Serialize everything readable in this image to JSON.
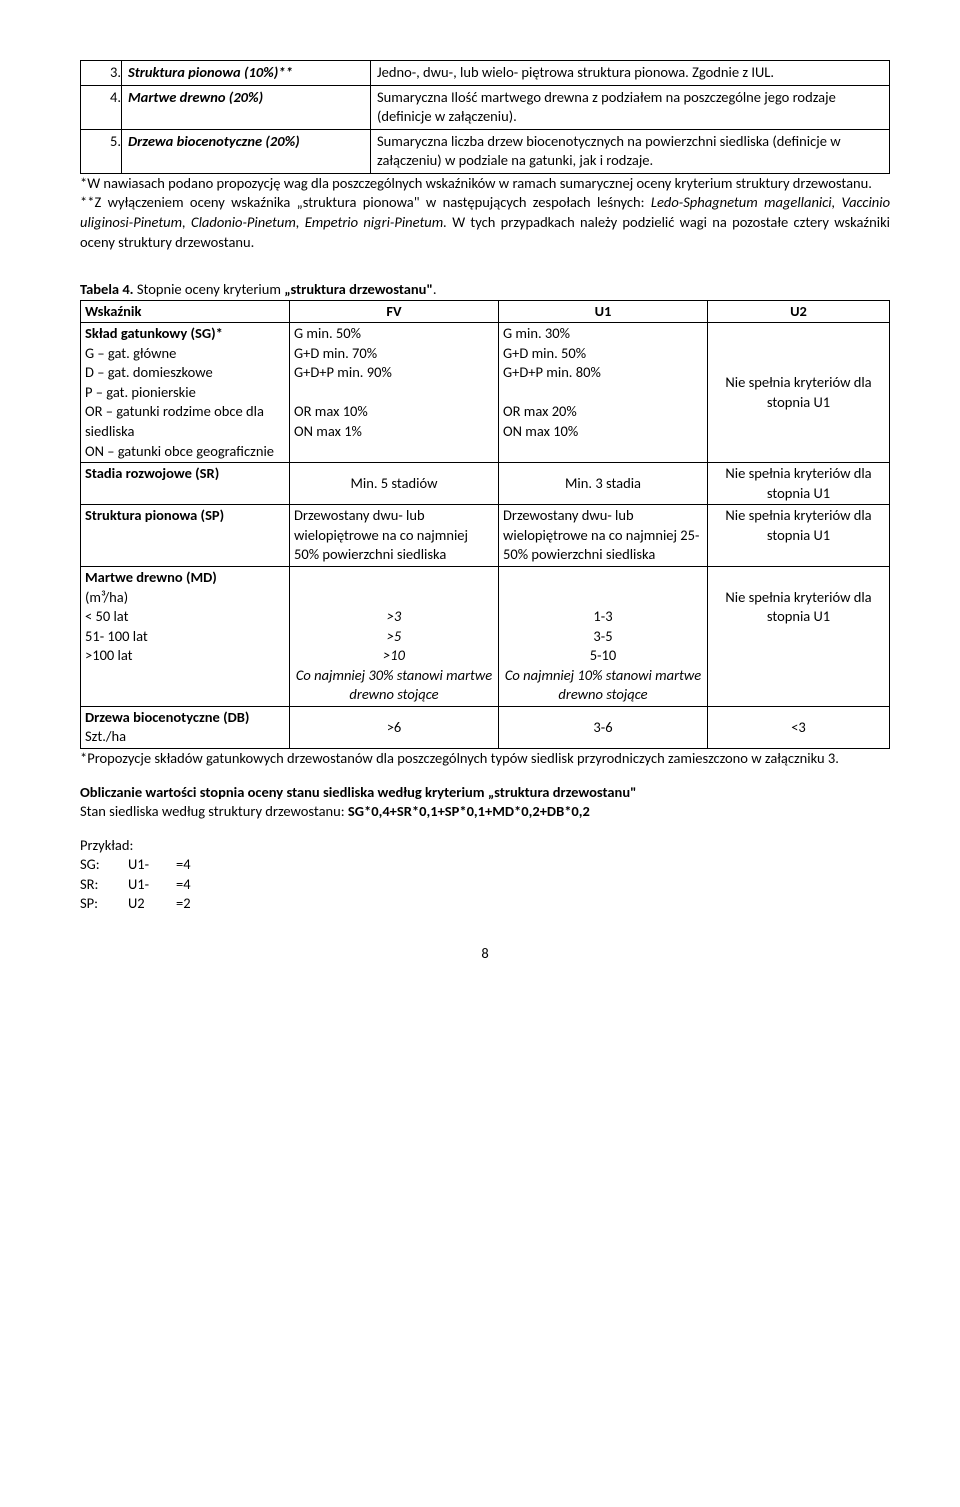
{
  "table1": {
    "rows": [
      {
        "num": "3.",
        "label": "Struktura pionowa (10%)**",
        "desc": "Jedno-, dwu-, lub wielo- piętrowa struktura pionowa. Zgodnie z IUL."
      },
      {
        "num": "4.",
        "label": "Martwe drewno (20%)",
        "desc": "Sumaryczna Ilość martwego drewna z podziałem na poszczególne jego rodzaje (definicje w załączeniu)."
      },
      {
        "num": "5.",
        "label": "Drzewa biocenotyczne (20%)",
        "desc": "Sumaryczna liczba drzew biocenotycznych na powierzchni siedliska (definicje w załączeniu) w podziale na gatunki, jak i rodzaje."
      }
    ]
  },
  "notes": {
    "n1": "*W nawiasach podano propozycję wag dla poszczególnych wskaźników w ramach sumarycznej oceny kryterium struktury drzewostanu.",
    "n2a": "**Z wyłączeniem oceny wskaźnika „struktura pionowa\" w następujących zespołach leśnych: ",
    "n2b": "Ledo-Sphagnetum magellanici, Vaccinio uliginosi-Pinetum, Cladonio-Pinetum, Empetrio nigri-Pinetum.",
    "n2c": " W tych przypadkach należy podzielić wagi na pozostałe cztery wskaźniki oceny struktury drzewostanu."
  },
  "table2_caption_a": "Tabela 4.",
  "table2_caption_b": " Stopnie oceny kryterium ",
  "table2_caption_c": "„struktura drzewostanu\"",
  "table2": {
    "header": [
      "Wskaźnik",
      "FV",
      "U1",
      "U2"
    ],
    "r1": {
      "label_b": "Skład gatunkowy (SG)*",
      "label_rest": [
        "G – gat. główne",
        "D – gat. domieszkowe",
        "P – gat. pionierskie",
        "OR – gatunki rodzime obce dla siedliska",
        "ON – gatunki obce geograficznie"
      ],
      "fv": [
        "G min. 50%",
        "G+D min. 70%",
        "G+D+P min. 90%",
        "",
        "OR max 10%",
        "ON max 1%"
      ],
      "u1": [
        "G min. 30%",
        "G+D min. 50%",
        "G+D+P min. 80%",
        "",
        "OR max 20%",
        "ON max 10%"
      ],
      "u2": "Nie spełnia kryteriów dla stopnia U1"
    },
    "r2": {
      "label": "Stadia rozwojowe (SR)",
      "fv": "Min. 5 stadiów",
      "u1": "Min. 3 stadia",
      "u2": "Nie spełnia kryteriów dla stopnia U1"
    },
    "r3": {
      "label": "Struktura pionowa (SP)",
      "fv": "Drzewostany dwu- lub wielopiętrowe na co najmniej 50% powierzchni siedliska",
      "u1": "Drzewostany dwu- lub wielopiętrowe na co najmniej 25- 50% powierzchni siedliska",
      "u2": "Nie spełnia kryteriów dla stopnia U1"
    },
    "r4": {
      "label_b": "Martwe drewno (MD)",
      "label_rest": [
        "(m³/ha)",
        "< 50 lat",
        "51- 100 lat",
        ">100 lat"
      ],
      "fv": [
        "",
        "",
        ">3",
        ">5",
        ">10",
        "Co najmniej 30% stanowi martwe drewno stojące"
      ],
      "u1": [
        "",
        "",
        "1-3",
        "3-5",
        "5-10",
        "Co najmniej 10% stanowi martwe drewno stojące"
      ],
      "u2": "Nie spełnia kryteriów dla stopnia U1"
    },
    "r5": {
      "label_b": "Drzewa biocenotyczne (DB)",
      "label_rest": "Szt./ha",
      "fv": ">6",
      "u1": "3-6",
      "u2": "<3"
    }
  },
  "footnote3": "*Propozycje składów gatunkowych drzewostanów dla poszczególnych typów siedlisk przyrodniczych zamieszczono w załączniku 3.",
  "calc_heading": "Obliczanie wartości stopnia oceny stanu siedliska według kryterium „struktura drzewostanu\"",
  "calc_line_a": "Stan siedliska według struktury drzewostanu: ",
  "calc_line_b": "SG*0,4+SR*0,1+SP*0,1+MD*0,2+DB*0,2",
  "example_label": "Przykład:",
  "example_rows": [
    {
      "a": "SG:",
      "b": "U1-",
      "c": "=4"
    },
    {
      "a": "SR:",
      "b": "U1-",
      "c": "=4"
    },
    {
      "a": "SP:",
      "b": "U2",
      "c": "=2"
    }
  ],
  "page_num": "8"
}
